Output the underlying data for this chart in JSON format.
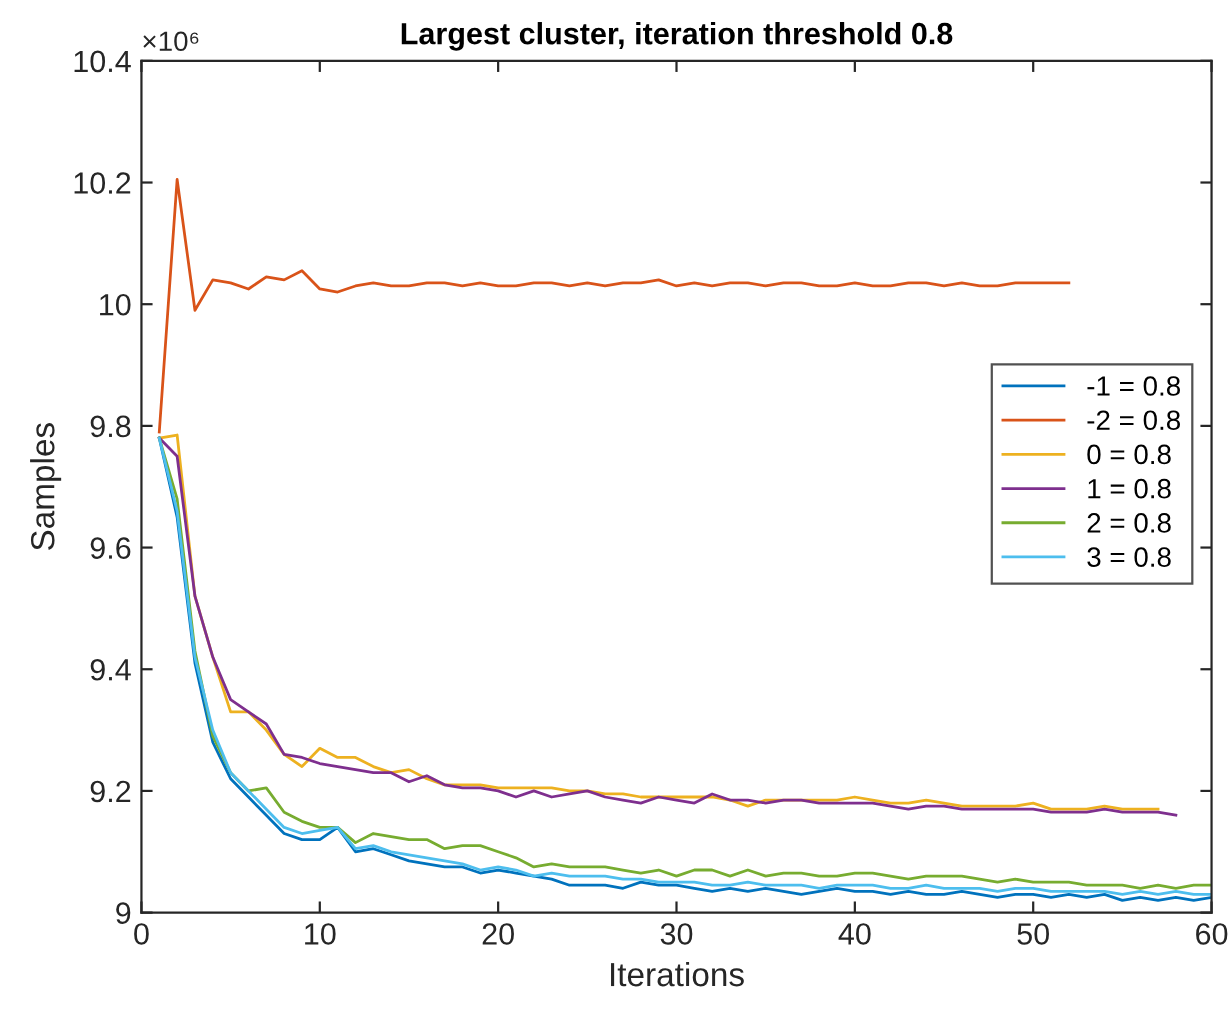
{
  "chart_data": {
    "type": "line",
    "title": "Largest cluster, iteration threshold 0.8",
    "xlabel": "Iterations",
    "ylabel": "Samples",
    "annotations": [
      "×10⁶"
    ],
    "x": [
      1,
      2,
      3,
      4,
      5,
      6,
      7,
      8,
      9,
      10,
      11,
      12,
      13,
      14,
      15,
      16,
      17,
      18,
      19,
      20,
      21,
      22,
      23,
      24,
      25,
      26,
      27,
      28,
      29,
      30,
      31,
      32,
      33,
      34,
      35,
      36,
      37,
      38,
      39,
      40,
      41,
      42,
      43,
      44,
      45,
      46,
      47,
      48,
      49,
      50,
      51,
      52,
      53,
      54,
      55,
      56,
      57,
      58,
      59,
      60
    ],
    "xlim": [
      0,
      60
    ],
    "xticks": [
      0,
      10,
      20,
      30,
      40,
      50,
      60
    ],
    "ylim": [
      9,
      10.4
    ],
    "yticks": [
      9,
      9.2,
      9.4,
      9.6,
      9.8,
      10,
      10.2,
      10.4
    ],
    "grid": false,
    "legend": "right",
    "marker": "none",
    "line_style": "solid",
    "series": [
      {
        "name": "-1 = 0.8",
        "color": "#0072bd",
        "values": [
          9.78,
          9.65,
          9.41,
          9.28,
          9.22,
          9.19,
          9.16,
          9.13,
          9.12,
          9.12,
          9.14,
          9.1,
          9.105,
          9.095,
          9.085,
          9.08,
          9.075,
          9.075,
          9.065,
          9.07,
          9.065,
          9.06,
          9.055,
          9.045,
          9.045,
          9.045,
          9.04,
          9.05,
          9.045,
          9.045,
          9.04,
          9.035,
          9.04,
          9.035,
          9.04,
          9.035,
          9.03,
          9.035,
          9.04,
          9.035,
          9.035,
          9.03,
          9.035,
          9.03,
          9.03,
          9.035,
          9.03,
          9.025,
          9.03,
          9.03,
          9.025,
          9.03,
          9.025,
          9.03,
          9.02,
          9.025,
          9.02,
          9.025,
          9.02,
          9.025
        ]
      },
      {
        "name": "-2 = 0.8",
        "color": "#d95319",
        "values": [
          9.79,
          10.205,
          9.99,
          10.04,
          10.035,
          10.025,
          10.045,
          10.04,
          10.055,
          10.025,
          10.02,
          10.03,
          10.035,
          10.03,
          10.03,
          10.035,
          10.035,
          10.03,
          10.035,
          10.03,
          10.03,
          10.035,
          10.035,
          10.03,
          10.035,
          10.03,
          10.035,
          10.035,
          10.04,
          10.03,
          10.035,
          10.03,
          10.035,
          10.035,
          10.03,
          10.035,
          10.035,
          10.03,
          10.03,
          10.035,
          10.03,
          10.03,
          10.035,
          10.035,
          10.03,
          10.035,
          10.03,
          10.03,
          10.035,
          10.035,
          10.035,
          10.035,
          null,
          null,
          null,
          null,
          null,
          null,
          null,
          null
        ]
      },
      {
        "name": "0 = 0.8",
        "color": "#edb120",
        "values": [
          9.78,
          9.785,
          9.52,
          9.42,
          9.33,
          9.33,
          9.3,
          9.26,
          9.24,
          9.27,
          9.255,
          9.255,
          9.24,
          9.23,
          9.235,
          9.22,
          9.21,
          9.21,
          9.21,
          9.205,
          9.205,
          9.205,
          9.205,
          9.2,
          9.2,
          9.195,
          9.195,
          9.19,
          9.19,
          9.19,
          9.19,
          9.19,
          9.185,
          9.175,
          9.185,
          9.185,
          9.185,
          9.185,
          9.185,
          9.19,
          9.185,
          9.18,
          9.18,
          9.185,
          9.18,
          9.175,
          9.175,
          9.175,
          9.175,
          9.18,
          9.17,
          9.17,
          9.17,
          9.175,
          9.17,
          9.17,
          9.17,
          null,
          null,
          null
        ]
      },
      {
        "name": "1 = 0.8",
        "color": "#7e2f8e",
        "values": [
          9.78,
          9.75,
          9.52,
          9.42,
          9.35,
          9.33,
          9.31,
          9.26,
          9.255,
          9.245,
          9.24,
          9.235,
          9.23,
          9.23,
          9.215,
          9.225,
          9.21,
          9.205,
          9.205,
          9.2,
          9.19,
          9.2,
          9.19,
          9.195,
          9.2,
          9.19,
          9.185,
          9.18,
          9.19,
          9.185,
          9.18,
          9.195,
          9.185,
          9.185,
          9.18,
          9.185,
          9.185,
          9.18,
          9.18,
          9.18,
          9.18,
          9.175,
          9.17,
          9.175,
          9.175,
          9.17,
          9.17,
          9.17,
          9.17,
          9.17,
          9.165,
          9.165,
          9.165,
          9.17,
          9.165,
          9.165,
          9.165,
          9.16,
          null,
          null
        ]
      },
      {
        "name": "2 = 0.8",
        "color": "#77ac30",
        "values": [
          9.78,
          9.68,
          9.43,
          9.29,
          9.23,
          9.2,
          9.205,
          9.165,
          9.15,
          9.14,
          9.14,
          9.115,
          9.13,
          9.125,
          9.12,
          9.12,
          9.105,
          9.11,
          9.11,
          9.1,
          9.09,
          9.075,
          9.08,
          9.075,
          9.075,
          9.075,
          9.07,
          9.065,
          9.07,
          9.06,
          9.07,
          9.07,
          9.06,
          9.07,
          9.06,
          9.065,
          9.065,
          9.06,
          9.06,
          9.065,
          9.065,
          9.06,
          9.055,
          9.06,
          9.06,
          9.06,
          9.055,
          9.05,
          9.055,
          9.05,
          9.05,
          9.05,
          9.045,
          9.045,
          9.045,
          9.04,
          9.045,
          9.04,
          9.045,
          9.045
        ]
      },
      {
        "name": "3 = 0.8",
        "color": "#4dbeee",
        "values": [
          9.78,
          9.66,
          9.42,
          9.3,
          9.23,
          9.2,
          9.17,
          9.14,
          9.13,
          9.135,
          9.14,
          9.105,
          9.11,
          9.1,
          9.095,
          9.09,
          9.085,
          9.08,
          9.07,
          9.075,
          9.07,
          9.06,
          9.065,
          9.06,
          9.06,
          9.06,
          9.055,
          9.055,
          9.05,
          9.05,
          9.05,
          9.045,
          9.045,
          9.05,
          9.045,
          9.045,
          9.045,
          9.04,
          9.045,
          9.045,
          9.045,
          9.04,
          9.04,
          9.045,
          9.04,
          9.04,
          9.04,
          9.035,
          9.04,
          9.04,
          9.035,
          9.035,
          9.035,
          9.035,
          9.03,
          9.035,
          9.03,
          9.035,
          9.03,
          9.03
        ]
      }
    ]
  }
}
